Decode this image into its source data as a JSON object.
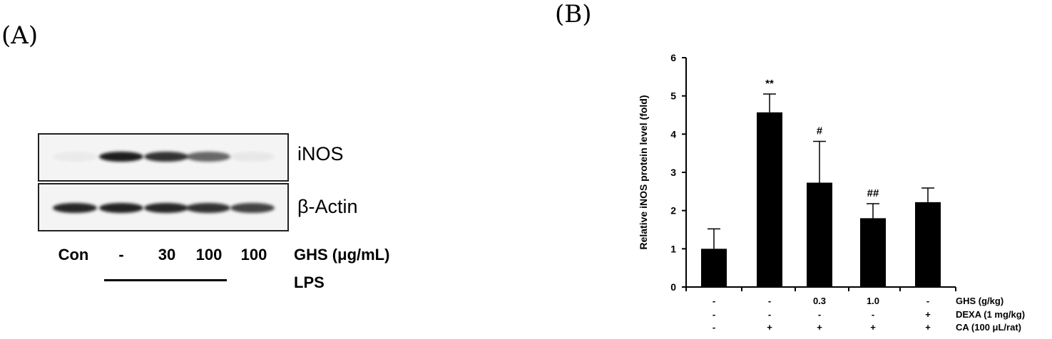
{
  "panel_a": {
    "label": "(A)",
    "blots": [
      {
        "name": "iNOS",
        "band_intensity": [
          0.04,
          0.95,
          0.85,
          0.62,
          0.05
        ]
      },
      {
        "name": "β-Actin",
        "band_intensity": [
          0.9,
          0.92,
          0.9,
          0.85,
          0.78
        ]
      }
    ],
    "lanes": [
      "Con",
      "-",
      "30",
      "100",
      "100"
    ],
    "treatment_label": "GHS (μg/mL)",
    "stimulus_label": "LPS"
  },
  "panel_b": {
    "label": "(B)"
  },
  "chart_data": {
    "type": "bar",
    "ylabel": "Relative iNOS protein level (fold)",
    "ylim": [
      0,
      6
    ],
    "yticks": [
      "0",
      "1",
      "2",
      "3",
      "4",
      "5",
      "6"
    ],
    "values": [
      1.0,
      4.57,
      2.73,
      1.8,
      2.22
    ],
    "errors": [
      0.52,
      0.48,
      1.08,
      0.38,
      0.37
    ],
    "annotations": [
      "",
      "**",
      "#",
      "##",
      ""
    ],
    "condition_rows": [
      {
        "label": "GHS (g/kg)",
        "values": [
          "-",
          "-",
          "0.3",
          "1.0",
          "-"
        ]
      },
      {
        "label": "DEXA (1 mg/kg)",
        "values": [
          "-",
          "-",
          "-",
          "-",
          "+"
        ]
      },
      {
        "label": "CA (100 μL/rat)",
        "values": [
          "-",
          "+",
          "+",
          "+",
          "+"
        ]
      }
    ],
    "bar_color": "#000000",
    "grid": false
  }
}
